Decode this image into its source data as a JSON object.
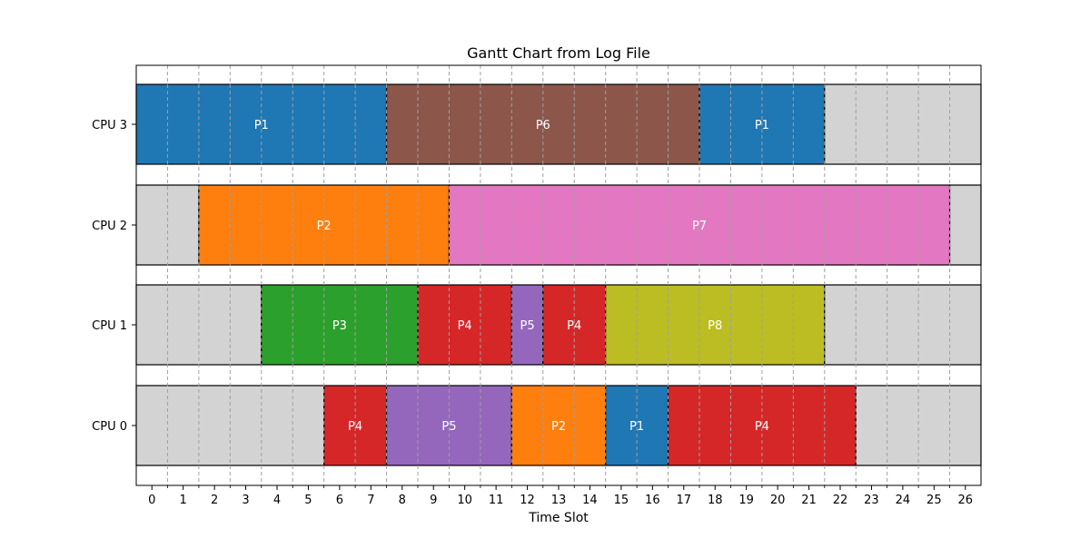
{
  "chart_data": {
    "type": "gantt",
    "title": "Gantt Chart from Log File",
    "xlabel": "Time Slot",
    "ylabel": "",
    "xlim": [
      -0.5,
      26.5
    ],
    "x_ticks": [
      0,
      1,
      2,
      3,
      4,
      5,
      6,
      7,
      8,
      9,
      10,
      11,
      12,
      13,
      14,
      15,
      16,
      17,
      18,
      19,
      20,
      21,
      22,
      23,
      24,
      25,
      26
    ],
    "grid": "vertical dashed at half-slot boundaries",
    "idle_color": "#d3d3d3",
    "process_colors": {
      "P1": "#1f77b4",
      "P2": "#ff7f0e",
      "P3": "#2ca02c",
      "P4": "#d62728",
      "P5": "#9467bd",
      "P6": "#8c564b",
      "P7": "#e377c2",
      "P8": "#bcbd22"
    },
    "rows": [
      {
        "label": "CPU 3",
        "segments": [
          {
            "process": "P1",
            "start": -0.5,
            "end": 7.5
          },
          {
            "process": "P6",
            "start": 7.5,
            "end": 17.5
          },
          {
            "process": "P1",
            "start": 17.5,
            "end": 21.5
          },
          {
            "process": "",
            "start": 21.5,
            "end": 26.5
          }
        ]
      },
      {
        "label": "CPU 2",
        "segments": [
          {
            "process": "",
            "start": -0.5,
            "end": 1.5
          },
          {
            "process": "P2",
            "start": 1.5,
            "end": 9.5
          },
          {
            "process": "P7",
            "start": 9.5,
            "end": 25.5
          },
          {
            "process": "",
            "start": 25.5,
            "end": 26.5
          }
        ]
      },
      {
        "label": "CPU 1",
        "segments": [
          {
            "process": "",
            "start": -0.5,
            "end": 3.5
          },
          {
            "process": "P3",
            "start": 3.5,
            "end": 8.5
          },
          {
            "process": "P4",
            "start": 8.5,
            "end": 11.5
          },
          {
            "process": "P5",
            "start": 11.5,
            "end": 12.5
          },
          {
            "process": "P4",
            "start": 12.5,
            "end": 14.5
          },
          {
            "process": "P8",
            "start": 14.5,
            "end": 21.5
          },
          {
            "process": "",
            "start": 21.5,
            "end": 26.5
          }
        ]
      },
      {
        "label": "CPU 0",
        "segments": [
          {
            "process": "",
            "start": -0.5,
            "end": 5.5
          },
          {
            "process": "P4",
            "start": 5.5,
            "end": 7.5
          },
          {
            "process": "P5",
            "start": 7.5,
            "end": 11.5
          },
          {
            "process": "P2",
            "start": 11.5,
            "end": 14.5
          },
          {
            "process": "P1",
            "start": 14.5,
            "end": 16.5
          },
          {
            "process": "P4",
            "start": 16.5,
            "end": 22.5
          },
          {
            "process": "",
            "start": 22.5,
            "end": 26.5
          }
        ]
      }
    ]
  }
}
